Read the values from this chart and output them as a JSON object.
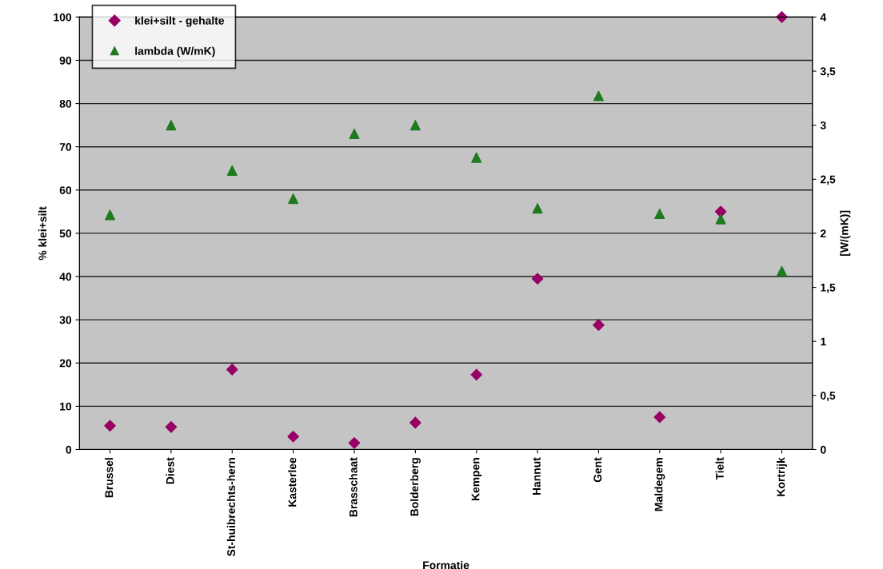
{
  "chart_data": {
    "type": "scatter",
    "xlabel": "Formatie",
    "ylabel": "% klei+silt",
    "y2label": "[W/(mK)]",
    "categories": [
      "Brussel",
      "Diest",
      "St-huibrechts-hern",
      "Kasterlee",
      "Brasschaat",
      "Bolderberg",
      "Kempen",
      "Hannut",
      "Gent",
      "Maldegem",
      "Tielt",
      "Kortrijk"
    ],
    "series": [
      {
        "name": "klei+silt - gehalte",
        "color": "#990066",
        "marker": "diamond",
        "values": [
          5.5,
          5.2,
          18.5,
          3,
          1.5,
          6.2,
          17.3,
          39.5,
          28.8,
          7.5,
          55,
          100
        ]
      },
      {
        "name": "lambda (W/mK)",
        "color": "#1e7a1e",
        "marker": "triangle",
        "axis": "y2",
        "values": [
          2.17,
          3.0,
          2.58,
          2.32,
          2.92,
          3.0,
          2.7,
          2.23,
          3.27,
          2.18,
          2.13,
          1.65
        ]
      }
    ],
    "ylim": [
      0,
      100
    ],
    "yticks": [
      0,
      10,
      20,
      30,
      40,
      50,
      60,
      70,
      80,
      90,
      100
    ],
    "y2lim": [
      0,
      4
    ],
    "y2ticks": [
      0,
      {
        "value": 0.5,
        "label": "0,5"
      },
      1,
      {
        "value": 1.5,
        "label": "1,5"
      },
      2,
      {
        "value": 2.5,
        "label": "2,5"
      },
      3,
      {
        "value": 3.5,
        "label": "3,5"
      },
      4
    ],
    "grid": "y",
    "legend": "top left"
  }
}
